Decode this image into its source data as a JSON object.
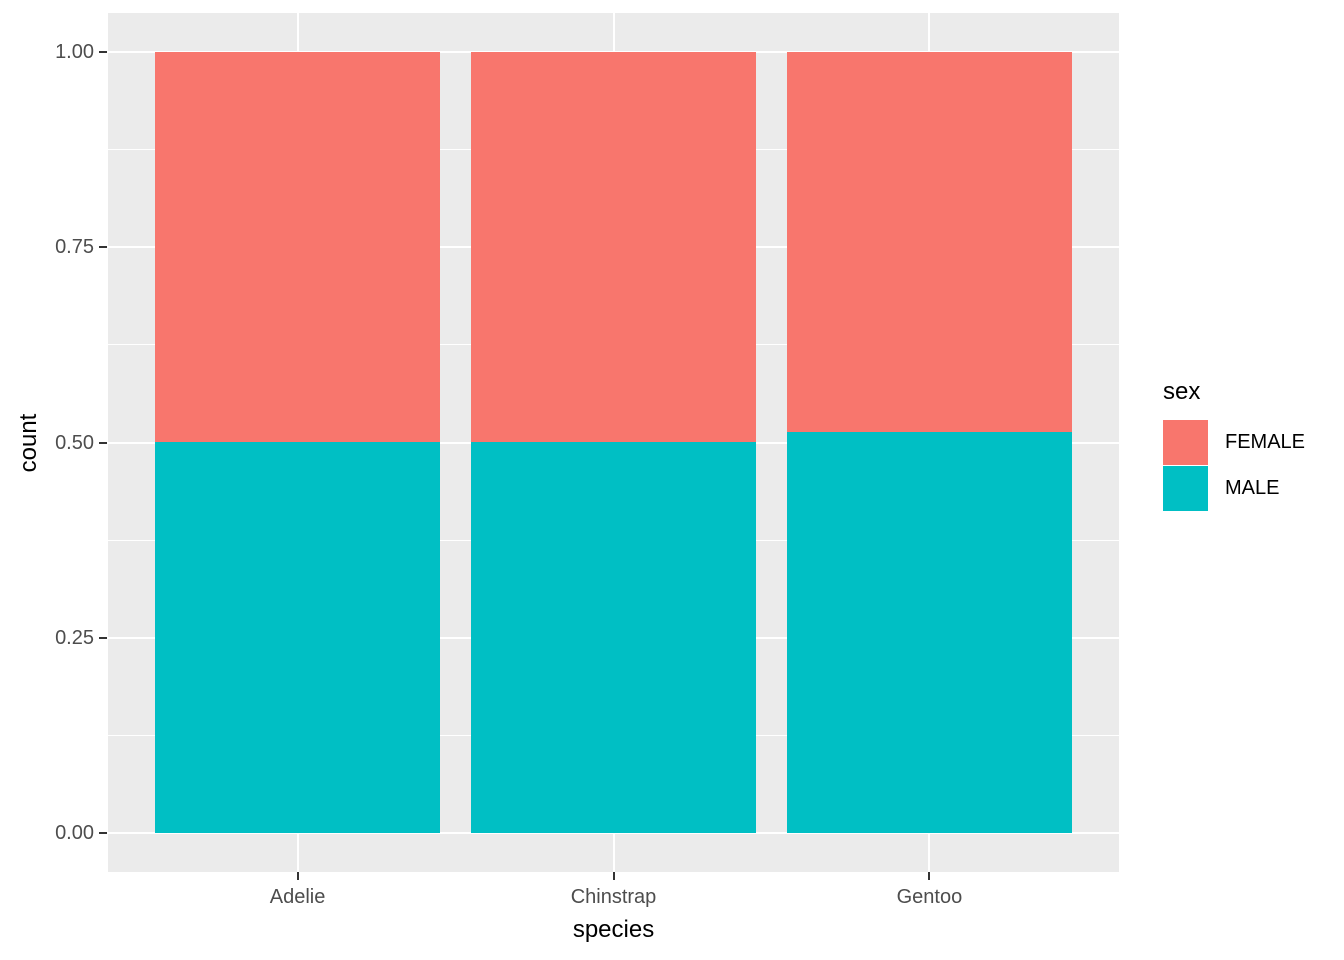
{
  "chart_data": {
    "type": "bar",
    "subtype": "stacked-fill",
    "categories": [
      "Adelie",
      "Chinstrap",
      "Gentoo"
    ],
    "series": [
      {
        "name": "FEMALE",
        "color": "#F8766D",
        "values": [
          0.5,
          0.5,
          0.487
        ]
      },
      {
        "name": "MALE",
        "color": "#00BFC4",
        "values": [
          0.5,
          0.5,
          0.513
        ]
      }
    ],
    "stack_order_bottom_to_top": [
      "MALE",
      "FEMALE"
    ],
    "title": "",
    "xlabel": "species",
    "ylabel": "count",
    "ylim": [
      0,
      1
    ],
    "y_major_ticks": [
      {
        "value": 0.0,
        "label": "0.00"
      },
      {
        "value": 0.25,
        "label": "0.25"
      },
      {
        "value": 0.5,
        "label": "0.50"
      },
      {
        "value": 0.75,
        "label": "0.75"
      },
      {
        "value": 1.0,
        "label": "1.00"
      }
    ],
    "y_minor_ticks": [
      0.125,
      0.375,
      0.625,
      0.875
    ],
    "grid": "on",
    "panel_background": "#EBEBEB",
    "gridline_color": "#FFFFFF",
    "bar_width_fraction": 0.9,
    "legend": {
      "title": "sex",
      "position": "right",
      "entries": [
        {
          "label": "FEMALE",
          "color": "#F8766D"
        },
        {
          "label": "MALE",
          "color": "#00BFC4"
        }
      ]
    },
    "text_colors": {
      "axis_text": "#4D4D4D",
      "axis_title": "#000000",
      "tick_mark": "#333333"
    }
  }
}
